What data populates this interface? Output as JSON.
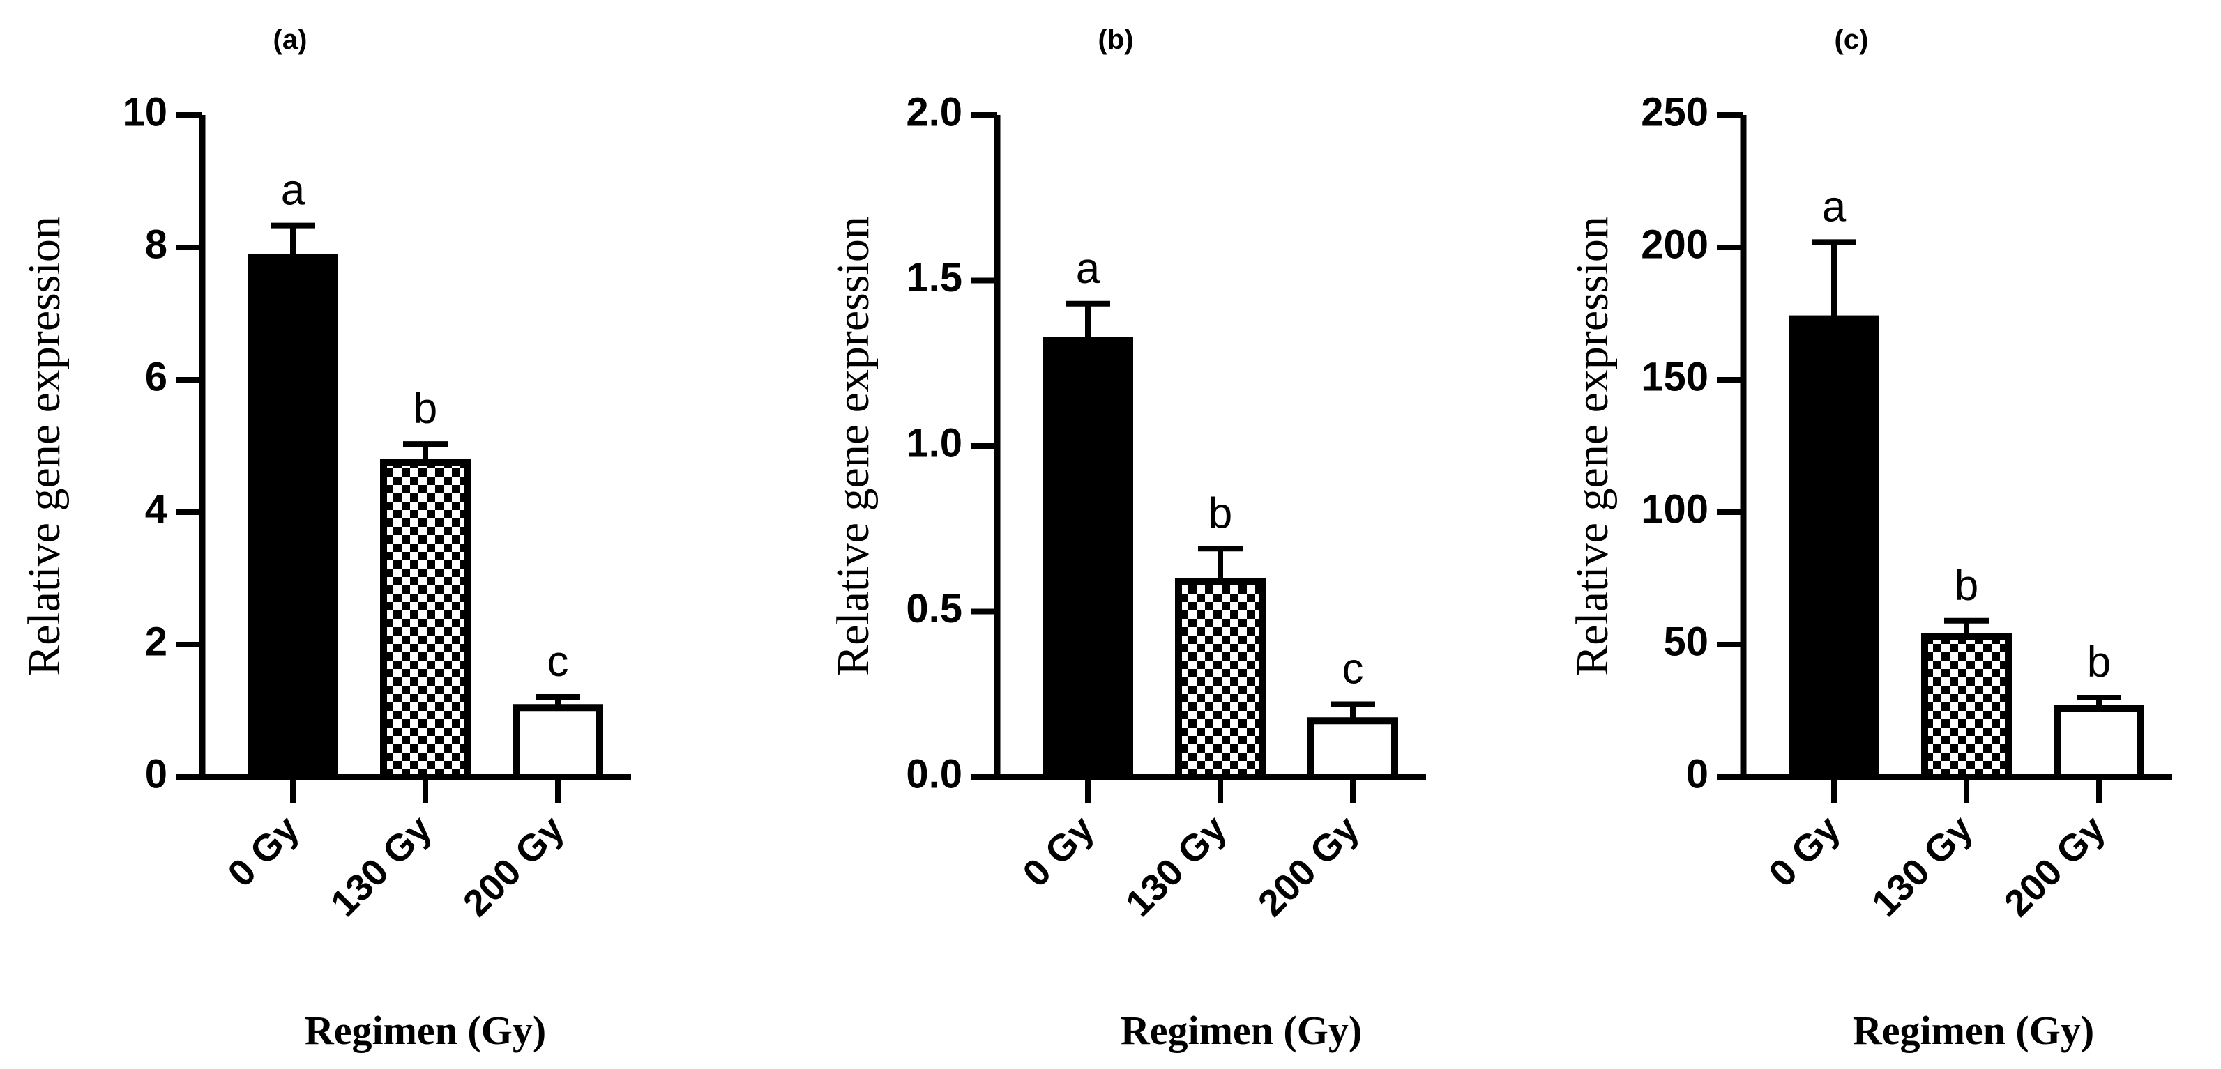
{
  "chart_data": [
    {
      "type": "bar",
      "panel_label": "(a)",
      "categories": [
        "0 Gy",
        "130 Gy",
        "200 Gy"
      ],
      "values": [
        7.85,
        4.75,
        1.05
      ],
      "errors": [
        0.48,
        0.28,
        0.16
      ],
      "significance": [
        "a",
        "b",
        "c"
      ],
      "fills": [
        "solid",
        "checker",
        "open"
      ],
      "ylabel": "Relative gene expression",
      "xlabel": "Regimen (Gy)",
      "ylim": [
        0,
        10
      ],
      "yticks": [
        0,
        2,
        4,
        6,
        8,
        10
      ],
      "ytick_labels": [
        "0",
        "2",
        "4",
        "6",
        "8",
        "10"
      ]
    },
    {
      "type": "bar",
      "panel_label": "(b)",
      "categories": [
        "0 Gy",
        "130 Gy",
        "200 Gy"
      ],
      "values": [
        1.32,
        0.59,
        0.17
      ],
      "errors": [
        0.11,
        0.1,
        0.05
      ],
      "significance": [
        "a",
        "b",
        "c"
      ],
      "fills": [
        "solid",
        "checker",
        "open"
      ],
      "ylabel": "Relative gene expression",
      "xlabel": "Regimen (Gy)",
      "ylim": [
        0,
        2
      ],
      "yticks": [
        0,
        0.5,
        1,
        1.5,
        2
      ],
      "ytick_labels": [
        "0.0",
        "0.5",
        "1.0",
        "1.5",
        "2.0"
      ]
    },
    {
      "type": "bar",
      "panel_label": "(c)",
      "categories": [
        "0 Gy",
        "130 Gy",
        "200 Gy"
      ],
      "values": [
        173,
        53,
        26
      ],
      "errors": [
        29,
        6,
        4
      ],
      "significance": [
        "a",
        "b",
        "b"
      ],
      "fills": [
        "solid",
        "checker",
        "open"
      ],
      "ylabel": "Relative gene expression",
      "xlabel": "Regimen (Gy)",
      "ylim": [
        0,
        250
      ],
      "yticks": [
        0,
        50,
        100,
        150,
        200,
        250
      ],
      "ytick_labels": [
        "0",
        "50",
        "100",
        "150",
        "200",
        "250"
      ]
    }
  ]
}
